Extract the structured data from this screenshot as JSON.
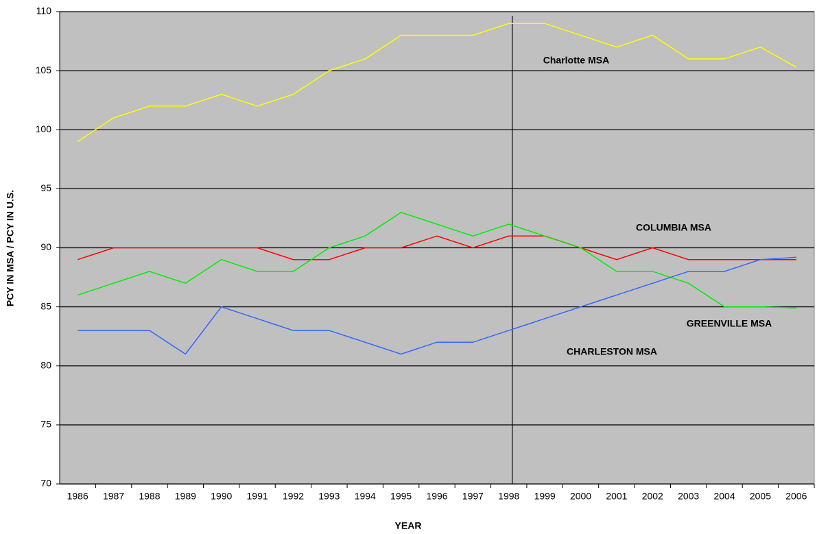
{
  "chart_data": {
    "type": "line",
    "x_label": "YEAR",
    "y_label": "PCY IN MSA / PCY IN U.S.",
    "categories": [
      "1986",
      "1987",
      "1988",
      "1989",
      "1990",
      "1991",
      "1992",
      "1993",
      "1994",
      "1995",
      "1996",
      "1997",
      "1998",
      "1999",
      "2000",
      "2001",
      "2002",
      "2003",
      "2004",
      "2005",
      "2006"
    ],
    "series": [
      {
        "name": "Charlotte MSA",
        "color": "#ffff00",
        "values": [
          99,
          101,
          102,
          102,
          103,
          102,
          103,
          105,
          106,
          108,
          108,
          108,
          109,
          109,
          108,
          107,
          108,
          106,
          106,
          107,
          105.3
        ]
      },
      {
        "name": "COLUMBIA MSA",
        "color": "#ff0000",
        "values": [
          89,
          90,
          90,
          90,
          90,
          90,
          89,
          89,
          90,
          90,
          91,
          90,
          91,
          91,
          90,
          89,
          90,
          89,
          89,
          89,
          89
        ]
      },
      {
        "name": "GREENVILLE MSA",
        "color": "#00ee00",
        "values": [
          86,
          87,
          88,
          87,
          89,
          88,
          88,
          90,
          91,
          93,
          92,
          91,
          92,
          91,
          90,
          88,
          88,
          87,
          85,
          85,
          84.9
        ]
      },
      {
        "name": "CHARLESTON MSA",
        "color": "#3366ff",
        "values": [
          83,
          83,
          83,
          81,
          85,
          84,
          83,
          83,
          82,
          81,
          82,
          82,
          83,
          84,
          85,
          86,
          87,
          88,
          88,
          89,
          89.2
        ]
      }
    ],
    "ylim": [
      70,
      110
    ],
    "yticks": [
      70,
      75,
      80,
      85,
      90,
      95,
      100,
      105,
      110
    ],
    "grid": true,
    "vline": "1998",
    "background": "#c0c0c0"
  }
}
